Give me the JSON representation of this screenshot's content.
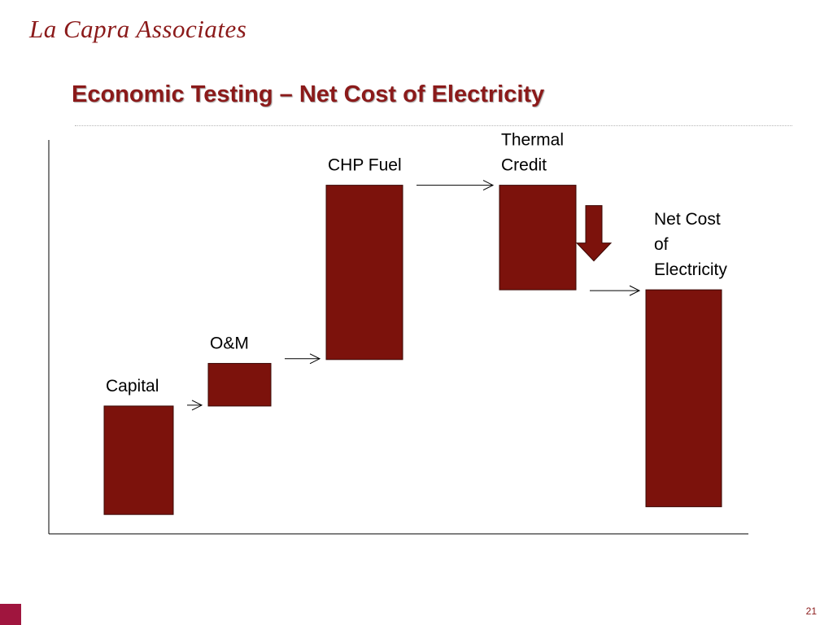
{
  "slide": {
    "logo_text": "La Capra Associates",
    "title": "Economic Testing – Net Cost of Electricity",
    "page_number": "21",
    "accent_color": "#8b1a1a"
  },
  "chart_data": {
    "type": "bar",
    "subtype": "waterfall",
    "title": "Economic Testing – Net Cost of Electricity",
    "xlabel": "",
    "ylabel": "",
    "bar_color": "#7c120c",
    "grid": false,
    "legend": "none",
    "ylim": [
      0,
      100
    ],
    "categories": [
      "Capital",
      "O&M",
      "CHP Fuel",
      "Thermal Credit",
      "Net Cost of Electricity"
    ],
    "label_lines": [
      [
        "Capital"
      ],
      [
        "O&M"
      ],
      [
        "CHP Fuel"
      ],
      [
        "Thermal",
        "Credit"
      ],
      [
        "Net Cost",
        "of",
        "Electricity"
      ]
    ],
    "bars": [
      {
        "category": "Capital",
        "start": 5,
        "end": 33,
        "direction": "increase"
      },
      {
        "category": "O&M",
        "start": 33,
        "end": 44,
        "direction": "increase"
      },
      {
        "category": "CHP Fuel",
        "start": 45,
        "end": 90,
        "direction": "increase"
      },
      {
        "category": "Thermal Credit",
        "start": 90,
        "end": 63,
        "direction": "decrease"
      },
      {
        "category": "Net Cost of Electricity",
        "start": 7,
        "end": 63,
        "direction": "total"
      }
    ],
    "annotations": [
      {
        "type": "connector-arrow",
        "from": "Capital",
        "to": "O&M"
      },
      {
        "type": "connector-arrow",
        "from": "O&M",
        "to": "CHP Fuel"
      },
      {
        "type": "connector-arrow",
        "from": "CHP Fuel",
        "to": "Thermal Credit"
      },
      {
        "type": "connector-arrow",
        "from": "Thermal Credit",
        "to": "Net Cost of Electricity"
      },
      {
        "type": "down-arrow",
        "at": "Thermal Credit"
      }
    ]
  }
}
